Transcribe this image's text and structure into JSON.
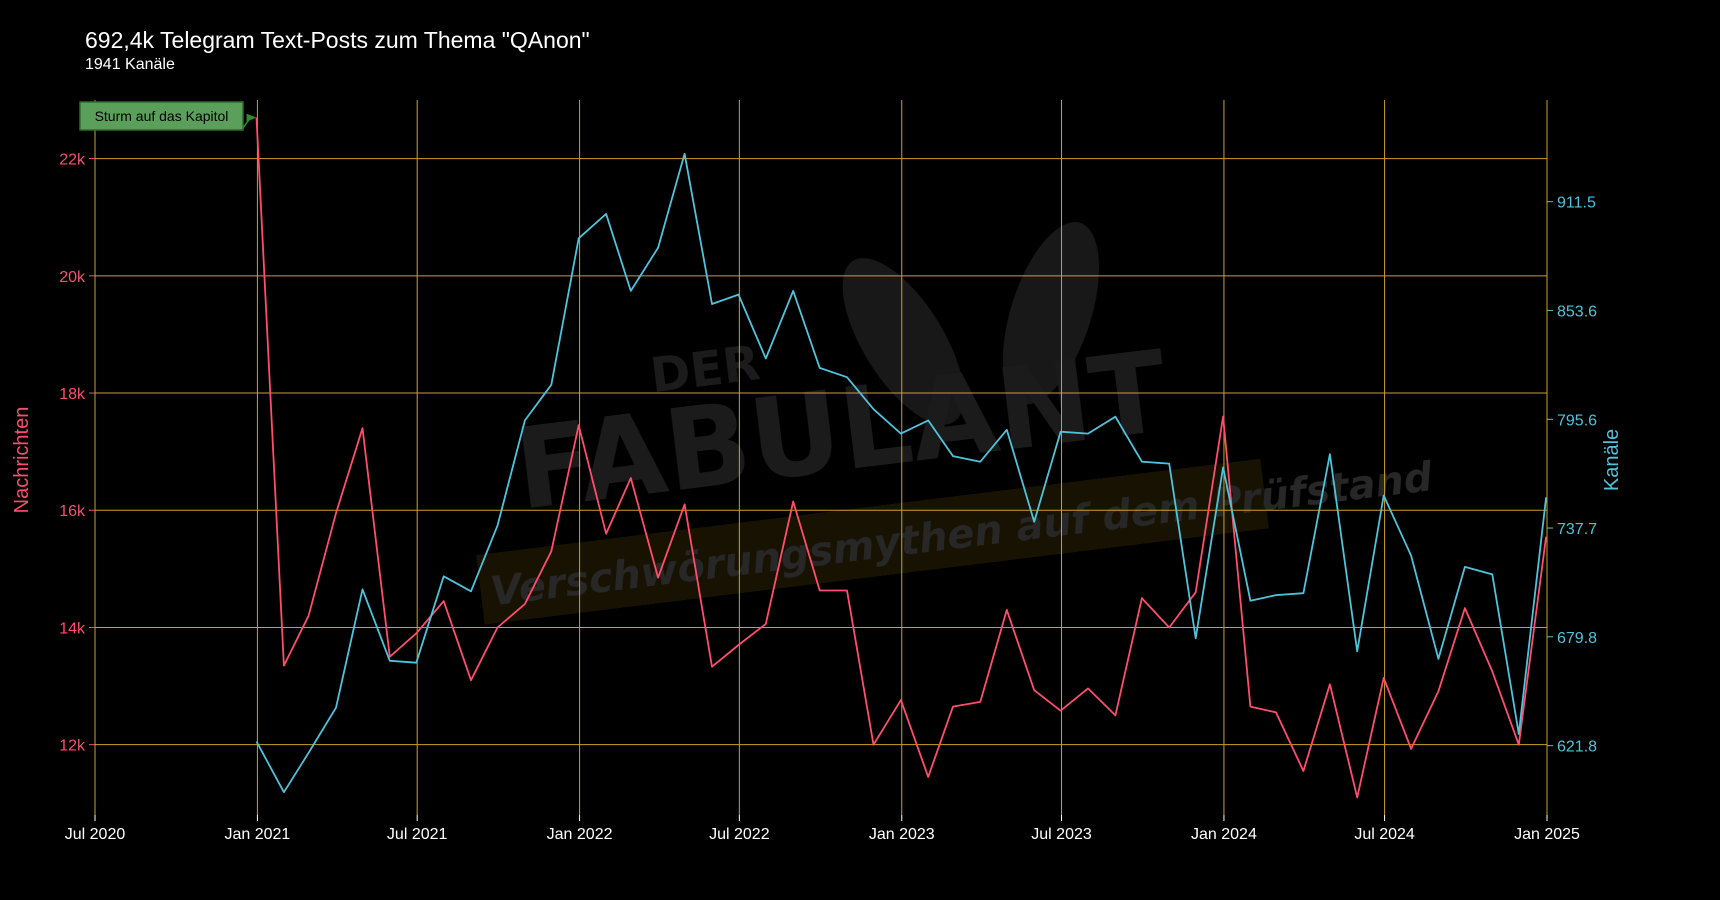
{
  "chart_data": {
    "type": "line",
    "title": "692,4k Telegram Text-Posts zum Thema \"QAnon\"",
    "subtitle": "1941 Kanäle",
    "x_ticks": [
      "2020-07-01",
      "2021-01-01",
      "2021-07-01",
      "2022-01-01",
      "2022-07-01",
      "2023-01-01",
      "2023-07-01",
      "2024-01-01",
      "2024-07-01",
      "2025-01-01"
    ],
    "x_tick_labels": [
      "Jul 2020",
      "Jan 2021",
      "Jul 2021",
      "Jan 2022",
      "Jul 2022",
      "Jan 2023",
      "Jul 2023",
      "Jan 2024",
      "Jul 2024",
      "Jan 2025"
    ],
    "x_range": [
      "2020-07-01",
      "2025-01-01"
    ],
    "y_left": {
      "label": "Nachrichten",
      "range": [
        10800,
        23000
      ],
      "ticks": [
        12000,
        14000,
        16000,
        18000,
        20000,
        22000
      ],
      "tick_labels": [
        "12k",
        "14k",
        "16k",
        "18k",
        "20k",
        "22k"
      ],
      "color": "#ff4d6d"
    },
    "y_right": {
      "label": "Kanäle",
      "range": [
        584.88,
        965.64
      ],
      "ticks": [
        621.8,
        679.8,
        737.7,
        795.6,
        853.6,
        911.5
      ],
      "tick_labels": [
        "621.8",
        "679.8",
        "737.7",
        "795.6",
        "853.6",
        "911.5"
      ],
      "color": "#4fc3dc"
    },
    "grid": true,
    "grid_color": "#c9a227",
    "x": [
      "2020-12-31",
      "2021-01-31",
      "2021-02-28",
      "2021-03-31",
      "2021-04-30",
      "2021-05-31",
      "2021-06-30",
      "2021-07-31",
      "2021-08-31",
      "2021-09-30",
      "2021-10-31",
      "2021-11-30",
      "2021-12-31",
      "2022-01-31",
      "2022-02-28",
      "2022-03-31",
      "2022-04-30",
      "2022-05-31",
      "2022-06-30",
      "2022-07-31",
      "2022-08-31",
      "2022-09-30",
      "2022-10-31",
      "2022-11-30",
      "2022-12-31",
      "2023-01-31",
      "2023-02-28",
      "2023-03-31",
      "2023-04-30",
      "2023-05-31",
      "2023-06-30",
      "2023-07-31",
      "2023-08-31",
      "2023-09-30",
      "2023-10-31",
      "2023-11-30",
      "2023-12-31",
      "2024-01-31",
      "2024-02-29",
      "2024-03-31",
      "2024-04-30",
      "2024-05-31",
      "2024-06-30",
      "2024-07-31",
      "2024-08-31",
      "2024-09-30",
      "2024-10-31",
      "2024-11-30",
      "2024-12-31"
    ],
    "series": [
      {
        "name": "Nachrichten",
        "axis": "left",
        "color": "#ff4d6d",
        "values": [
          22700,
          13350,
          14200,
          15950,
          17400,
          13500,
          13900,
          14450,
          13100,
          14000,
          14400,
          15300,
          17450,
          15600,
          16550,
          14850,
          16100,
          13330,
          13700,
          14060,
          16150,
          14630,
          14630,
          12000,
          12760,
          11450,
          12650,
          12730,
          14300,
          12930,
          12580,
          12960,
          12500,
          14500,
          14000,
          14600,
          17600,
          12650,
          12550,
          11550,
          13030,
          11100,
          13140,
          11930,
          12910,
          14330,
          13250,
          12000,
          15550
        ]
      },
      {
        "name": "Kanäle",
        "axis": "right",
        "color": "#4fc3dc",
        "values": [
          624,
          597,
          618,
          642,
          705,
          667,
          666,
          712,
          704,
          739,
          795,
          814,
          892,
          905,
          864,
          887,
          937,
          857,
          862,
          828,
          864,
          823,
          818,
          801,
          788,
          795,
          776,
          773,
          790,
          741,
          789,
          788,
          797,
          773,
          772,
          679,
          770,
          699,
          702,
          703,
          777,
          672,
          755,
          723,
          668,
          717,
          713,
          628,
          754
        ]
      }
    ],
    "annotations": [
      {
        "text": "Sturm auf das Kapitol",
        "x": "2020-12-31",
        "y": 22700
      }
    ],
    "watermark": {
      "line1": "DER",
      "line2": "FABULANT",
      "line3": "Verschwörungsmythen auf dem Prüfstand"
    }
  }
}
